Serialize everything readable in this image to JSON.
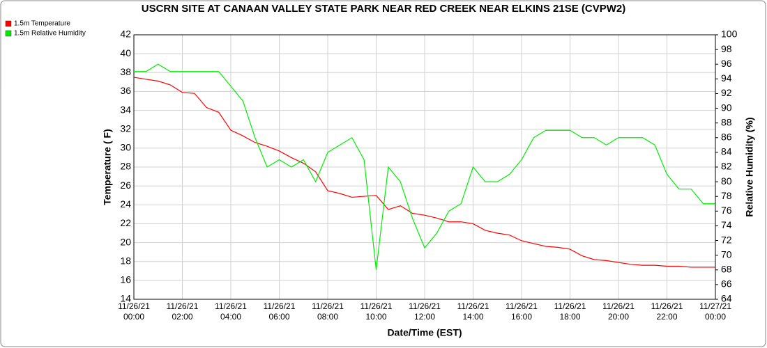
{
  "chart_data": {
    "type": "line",
    "title": "USCRN SITE AT CANAAN VALLEY STATE PARK NEAR RED CREEK NEAR ELKINS 21SE (CVPW2)",
    "x_label": "Date/Time (EST)",
    "y_label": "Temperature ( F)",
    "y2_label": "Relative Humidity (%)",
    "x": [
      "11/26/21 00:00",
      "11/26/21 00:30",
      "11/26/21 01:00",
      "11/26/21 01:30",
      "11/26/21 02:00",
      "11/26/21 02:30",
      "11/26/21 03:00",
      "11/26/21 03:30",
      "11/26/21 04:00",
      "11/26/21 04:30",
      "11/26/21 05:00",
      "11/26/21 05:30",
      "11/26/21 06:00",
      "11/26/21 06:30",
      "11/26/21 07:00",
      "11/26/21 07:30",
      "11/26/21 08:00",
      "11/26/21 08:30",
      "11/26/21 09:00",
      "11/26/21 09:30",
      "11/26/21 10:00",
      "11/26/21 10:30",
      "11/26/21 11:00",
      "11/26/21 11:30",
      "11/26/21 12:00",
      "11/26/21 12:30",
      "11/26/21 13:00",
      "11/26/21 13:30",
      "11/26/21 14:00",
      "11/26/21 14:30",
      "11/26/21 15:00",
      "11/26/21 15:30",
      "11/26/21 16:00",
      "11/26/21 16:30",
      "11/26/21 17:00",
      "11/26/21 17:30",
      "11/26/21 18:00",
      "11/26/21 18:30",
      "11/26/21 19:00",
      "11/26/21 19:30",
      "11/26/21 20:00",
      "11/26/21 20:30",
      "11/26/21 21:00",
      "11/26/21 21:30",
      "11/26/21 22:00",
      "11/26/21 22:30",
      "11/26/21 23:00",
      "11/26/21 23:30",
      "11/27/21 00:00"
    ],
    "series": [
      {
        "name": "1.5m Temperature",
        "color": "#ff0000",
        "values": [
          37.5,
          37.3,
          37.1,
          36.7,
          35.9,
          35.8,
          34.3,
          33.8,
          31.9,
          31.3,
          30.6,
          30.2,
          29.7,
          29.0,
          28.4,
          27.5,
          25.5,
          25.2,
          24.8,
          24.9,
          25.0,
          23.5,
          23.9,
          23.1,
          22.9,
          22.6,
          22.2,
          22.2,
          22.0,
          21.3,
          21.0,
          20.8,
          20.2,
          19.9,
          19.6,
          19.5,
          19.3,
          18.6,
          18.2,
          18.1,
          17.9,
          17.7,
          17.6,
          17.6,
          17.5,
          17.5,
          17.4,
          17.4,
          17.4
        ]
      },
      {
        "name": "1.5m Relative Humidity",
        "color": "#00ee00",
        "axis": "y2",
        "values": [
          95,
          95,
          96,
          95,
          95,
          95,
          95,
          95,
          93,
          91,
          86,
          82,
          83,
          82,
          83,
          80,
          84,
          85,
          86,
          83,
          68,
          82,
          80,
          75,
          71,
          73,
          76,
          77,
          82,
          80,
          80,
          81,
          83,
          86,
          87,
          87,
          87,
          86,
          86,
          85,
          86,
          86,
          86,
          85,
          81,
          79,
          79,
          77,
          77
        ]
      }
    ],
    "xlim": [
      "11/26/21 00:00",
      "11/27/21 00:00"
    ],
    "xticks": [
      "11/26/21 00:00",
      "11/26/21 02:00",
      "11/26/21 04:00",
      "11/26/21 06:00",
      "11/26/21 08:00",
      "11/26/21 10:00",
      "11/26/21 12:00",
      "11/26/21 14:00",
      "11/26/21 16:00",
      "11/26/21 18:00",
      "11/26/21 20:00",
      "11/26/21 22:00",
      "11/27/21 00:00"
    ],
    "ylim": [
      14,
      42
    ],
    "yticks": [
      14,
      16,
      18,
      20,
      22,
      24,
      26,
      28,
      30,
      32,
      34,
      36,
      38,
      40,
      42
    ],
    "y2lim": [
      64,
      100
    ],
    "y2ticks": [
      64,
      66,
      68,
      70,
      72,
      74,
      76,
      78,
      80,
      82,
      84,
      86,
      88,
      90,
      92,
      94,
      96,
      98,
      100
    ],
    "grid": true,
    "legend": "top-left"
  }
}
